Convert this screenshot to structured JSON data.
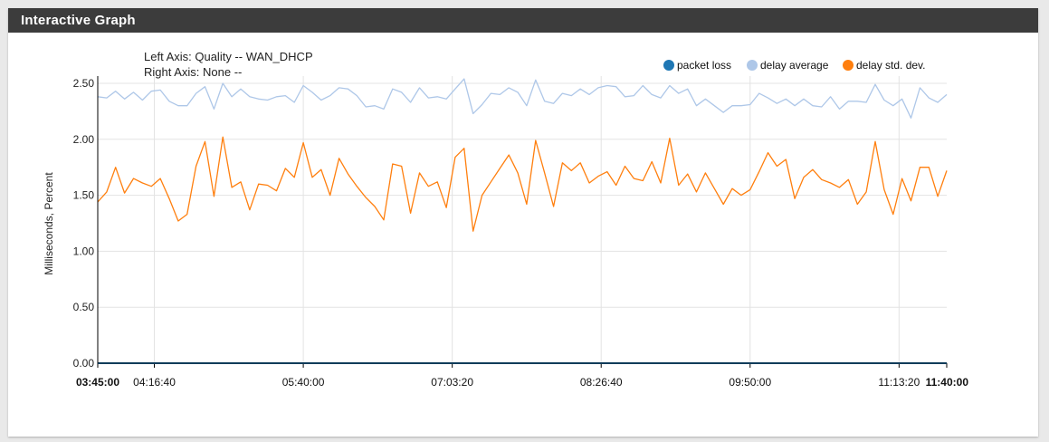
{
  "panel": {
    "title": "Interactive Graph"
  },
  "chart_data": {
    "type": "line",
    "left_axis_label": "Left Axis: Quality -- WAN_DHCP",
    "right_axis_label": "Right Axis: None --",
    "ylabel": "Milliseconds, Percent",
    "ylim": [
      0,
      2.5
    ],
    "yticks": [
      "0.00",
      "0.50",
      "1.00",
      "1.50",
      "2.00",
      "2.50"
    ],
    "xlim": [
      "03:45:00",
      "11:40:00"
    ],
    "xticks": [
      "03:45:00",
      "04:16:40",
      "05:40:00",
      "07:03:20",
      "08:26:40",
      "09:50:00",
      "11:13:20",
      "11:40:00"
    ],
    "bold_xticks": [
      "03:45:00",
      "11:40:00"
    ],
    "grid": true,
    "legend_position": "top-right",
    "series": [
      {
        "name": "packet loss",
        "color": "#1f77b4",
        "values": [
          0,
          0,
          0,
          0,
          0,
          0,
          0,
          0,
          0,
          0,
          0,
          0,
          0,
          0,
          0,
          0,
          0,
          0,
          0,
          0,
          0,
          0,
          0,
          0,
          0,
          0,
          0,
          0,
          0,
          0,
          0,
          0,
          0,
          0,
          0,
          0,
          0,
          0,
          0,
          0,
          0,
          0,
          0,
          0,
          0,
          0,
          0,
          0,
          0,
          0,
          0,
          0,
          0,
          0,
          0,
          0,
          0,
          0,
          0,
          0,
          0,
          0,
          0,
          0,
          0,
          0,
          0,
          0,
          0,
          0,
          0,
          0,
          0,
          0,
          0,
          0,
          0,
          0,
          0,
          0,
          0,
          0,
          0,
          0,
          0,
          0,
          0,
          0,
          0,
          0,
          0,
          0,
          0,
          0,
          0,
          0,
          0,
          0,
          0,
          0
        ]
      },
      {
        "name": "delay average",
        "color": "#aec7e8",
        "values": [
          2.38,
          2.37,
          2.43,
          2.36,
          2.42,
          2.35,
          2.43,
          2.44,
          2.34,
          2.3,
          2.3,
          2.41,
          2.47,
          2.27,
          2.5,
          2.38,
          2.45,
          2.38,
          2.36,
          2.35,
          2.38,
          2.39,
          2.33,
          2.48,
          2.42,
          2.35,
          2.39,
          2.46,
          2.45,
          2.39,
          2.29,
          2.3,
          2.27,
          2.45,
          2.42,
          2.33,
          2.46,
          2.37,
          2.38,
          2.36,
          2.45,
          2.54,
          2.23,
          2.31,
          2.41,
          2.4,
          2.46,
          2.42,
          2.3,
          2.53,
          2.34,
          2.32,
          2.41,
          2.39,
          2.45,
          2.4,
          2.46,
          2.48,
          2.47,
          2.38,
          2.39,
          2.48,
          2.4,
          2.37,
          2.48,
          2.41,
          2.45,
          2.3,
          2.36,
          2.3,
          2.24,
          2.3,
          2.3,
          2.31,
          2.41,
          2.37,
          2.32,
          2.36,
          2.3,
          2.36,
          2.3,
          2.29,
          2.38,
          2.27,
          2.34,
          2.34,
          2.33,
          2.49,
          2.35,
          2.3,
          2.36,
          2.19,
          2.46,
          2.37,
          2.33,
          2.4
        ]
      },
      {
        "name": "delay std. dev.",
        "color": "#ff7f0e",
        "values": [
          1.44,
          1.53,
          1.75,
          1.52,
          1.65,
          1.61,
          1.58,
          1.65,
          1.47,
          1.27,
          1.33,
          1.76,
          1.98,
          1.49,
          2.02,
          1.57,
          1.62,
          1.37,
          1.6,
          1.59,
          1.54,
          1.74,
          1.66,
          1.97,
          1.66,
          1.73,
          1.5,
          1.83,
          1.69,
          1.58,
          1.48,
          1.4,
          1.28,
          1.78,
          1.76,
          1.34,
          1.7,
          1.58,
          1.62,
          1.39,
          1.84,
          1.92,
          1.18,
          1.5,
          1.62,
          1.74,
          1.86,
          1.7,
          1.42,
          1.99,
          1.7,
          1.4,
          1.79,
          1.72,
          1.79,
          1.61,
          1.67,
          1.71,
          1.59,
          1.76,
          1.65,
          1.63,
          1.8,
          1.61,
          2.01,
          1.59,
          1.69,
          1.53,
          1.7,
          1.56,
          1.42,
          1.56,
          1.5,
          1.55,
          1.71,
          1.88,
          1.76,
          1.82,
          1.47,
          1.66,
          1.73,
          1.64,
          1.61,
          1.57,
          1.64,
          1.42,
          1.53,
          1.98,
          1.55,
          1.33,
          1.65,
          1.45,
          1.75,
          1.75,
          1.49,
          1.72
        ]
      }
    ]
  }
}
